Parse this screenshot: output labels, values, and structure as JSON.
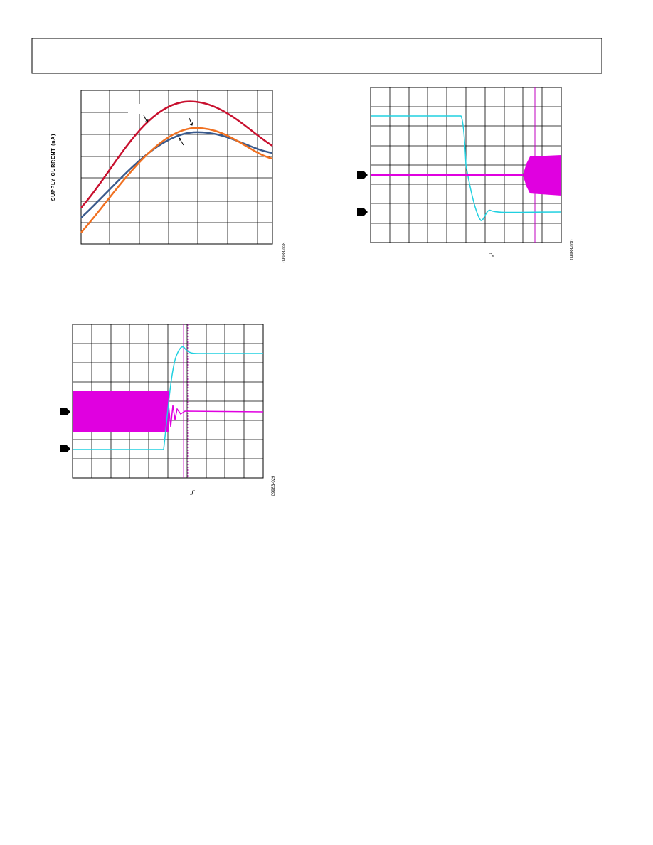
{
  "figure_28": {
    "y_axis_label": "SUPPLY CURRENT (nA)",
    "figure_id": "09983-028"
  },
  "figure_30": {
    "figure_id": "09983-030"
  },
  "figure_29": {
    "figure_id": "09983-029"
  }
}
